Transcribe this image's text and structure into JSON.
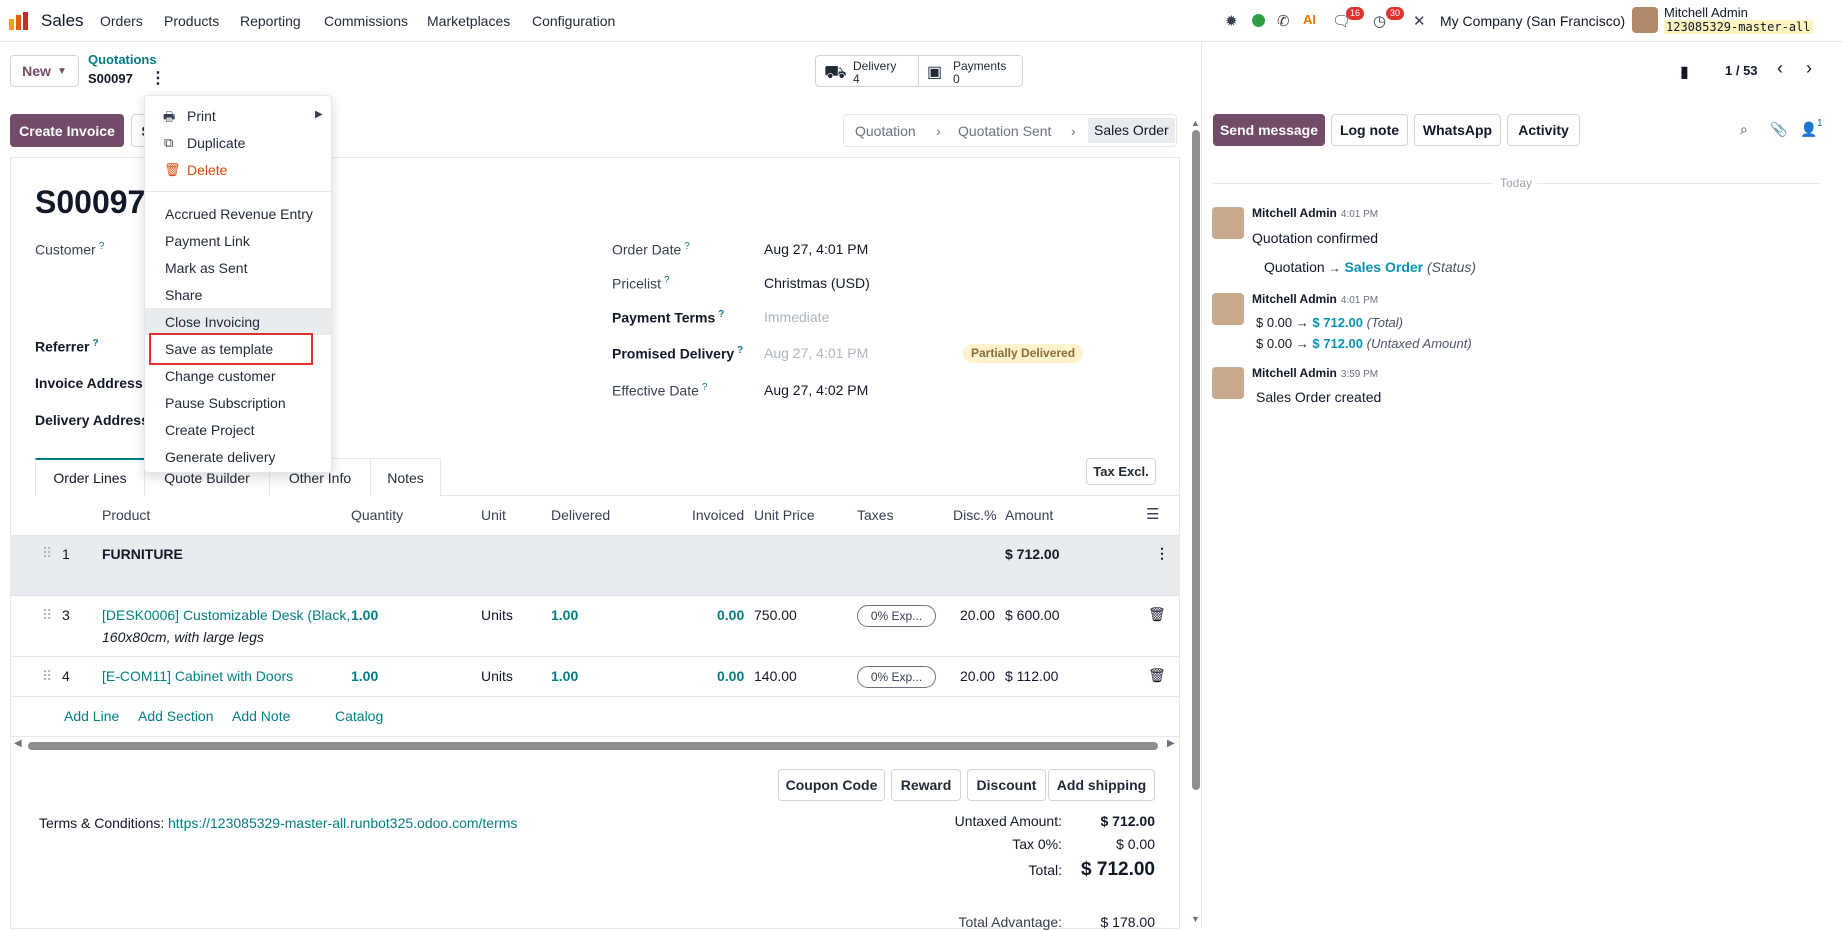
{
  "nav": {
    "app": "Sales",
    "menus": [
      "Orders",
      "Products",
      "Reporting",
      "Commissions",
      "Marketplaces",
      "Configuration"
    ],
    "messages_count": "16",
    "activity_count": "30",
    "company": "My Company (San Francisco)",
    "user_name": "Mitchell Admin",
    "db_name": "123085329-master-all"
  },
  "control": {
    "new_label": "New",
    "breadcrumb_parent": "Quotations",
    "breadcrumb_current": "S00097",
    "delivery_label": "Delivery",
    "delivery_count": "4",
    "payments_label": "Payments",
    "payments_count": "0",
    "pager": "1 / 53"
  },
  "actions": {
    "create_invoice": "Create Invoice",
    "send_partial": "S",
    "statusbar": [
      "Quotation",
      "Quotation Sent",
      "Sales Order"
    ]
  },
  "dropdown": {
    "print": "Print",
    "duplicate": "Duplicate",
    "delete": "Delete",
    "items": [
      "Accrued Revenue Entry",
      "Payment Link",
      "Mark as Sent",
      "Share",
      "Close Invoicing",
      "Save as template",
      "Change customer",
      "Pause Subscription",
      "Create Project",
      "Generate delivery"
    ]
  },
  "form": {
    "title": "S0009",
    "title_partial": "7",
    "customer_label": "Customer",
    "referrer_label": "Referrer",
    "invoice_address_label": "Invoice Address",
    "delivery_address_label": "Delivery Address",
    "order_date_label": "Order Date",
    "order_date": "Aug 27, 4:01 PM",
    "pricelist_label": "Pricelist",
    "pricelist": "Christmas (USD)",
    "payment_terms_label": "Payment Terms",
    "payment_terms_placeholder": "Immediate",
    "promised_delivery_label": "Promised Delivery",
    "promised_delivery": "Aug 27, 4:01 PM",
    "delivery_status": "Partially Delivered",
    "effective_date_label": "Effective Date",
    "effective_date": "Aug 27, 4:02 PM",
    "question_mark": "?"
  },
  "tabs": [
    "Order Lines",
    "Quote Builder",
    "Other Info",
    "Notes"
  ],
  "tax_excl": "Tax Excl.",
  "table": {
    "headers": [
      "Product",
      "Quantity",
      "Unit",
      "Delivered",
      "Invoiced",
      "Unit Price",
      "Taxes",
      "Disc.%",
      "Amount"
    ],
    "section": {
      "seq": "1",
      "name": "FURNITURE",
      "amount": "$ 712.00"
    },
    "rows": [
      {
        "seq": "3",
        "product": "[DESK0006] Customizable Desk (Black,",
        "description": "160x80cm, with large legs",
        "qty": "1.00",
        "unit": "Units",
        "delivered": "1.00",
        "invoiced": "0.00",
        "price": "750.00",
        "taxes": "0% Exp...",
        "disc": "20.00",
        "amount": "$ 600.00"
      },
      {
        "seq": "4",
        "product": "[E-COM11] Cabinet with Doors",
        "description": "",
        "qty": "1.00",
        "unit": "Units",
        "delivered": "1.00",
        "invoiced": "0.00",
        "price": "140.00",
        "taxes": "0% Exp...",
        "disc": "20.00",
        "amount": "$ 112.00"
      }
    ],
    "add_line": "Add Line",
    "add_section": "Add Section",
    "add_note": "Add Note",
    "catalog": "Catalog"
  },
  "footer_buttons": [
    "Coupon Code",
    "Reward",
    "Discount",
    "Add shipping"
  ],
  "terms": {
    "label": "Terms & Conditions:",
    "url": "https://123085329-master-all.runbot325.odoo.com/terms"
  },
  "totals": {
    "untaxed_label": "Untaxed Amount:",
    "untaxed": "$ 712.00",
    "tax_label": "Tax 0%:",
    "tax": "$ 0.00",
    "total_label": "Total:",
    "total": "$ 712.00",
    "advantage_label": "Total Advantage:",
    "advantage": "$ 178.00"
  },
  "chatter": {
    "send_message": "Send message",
    "log_note": "Log note",
    "whatsapp": "WhatsApp",
    "activity": "Activity",
    "followers_count": "1",
    "today": "Today",
    "messages": [
      {
        "author": "Mitchell Admin",
        "time": "4:01 PM",
        "text": "Quotation confirmed",
        "from": "Quotation",
        "arrow": "→",
        "to": "Sales Order",
        "field": "(Status)"
      },
      {
        "author": "Mitchell Admin",
        "time": "4:01 PM",
        "line1_from": "$ 0.00",
        "line1_to": "$ 712.00",
        "line1_field": "(Total)",
        "line2_from": "$ 0.00",
        "line2_to": "$ 712.00",
        "line2_field": "(Untaxed Amount)",
        "arrow": "→"
      },
      {
        "author": "Mitchell Admin",
        "time": "3:59 PM",
        "text": "Sales Order created"
      }
    ]
  },
  "colors": {
    "brand": "#714b67",
    "link": "#017e84",
    "highlight": "#e03131"
  }
}
